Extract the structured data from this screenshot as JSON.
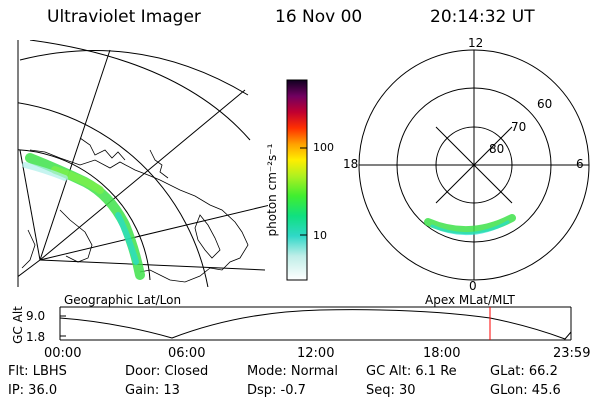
{
  "header": {
    "title": "Ultraviolet Imager",
    "date": "16 Nov 00",
    "time": "20:14:32 UT"
  },
  "colorbar": {
    "unit_label": "photon cm⁻²s⁻¹",
    "ticks": [
      "100",
      "10"
    ],
    "scale": "log"
  },
  "polar_plot": {
    "mlt_labels": {
      "top": "12",
      "left": "18",
      "right": "6",
      "bottom": "0"
    },
    "lat_labels": [
      "60",
      "70",
      "80"
    ]
  },
  "altitude_panel": {
    "left_caption": "Geographic Lat/Lon",
    "right_caption": "Apex MLat/MLT",
    "axis_label": "GC Alt",
    "y_ticks": [
      "9.0",
      "1.8"
    ],
    "x_ticks": [
      "00:00",
      "06:00",
      "12:00",
      "18:00",
      "23:59"
    ],
    "current_time_marker": "20:14:32",
    "marker_color": "#ff0000"
  },
  "info": {
    "row1": {
      "flt": "Flt: LBHS",
      "door": "Door: Closed",
      "mode": "Mode: Normal",
      "gcalt": "GC Alt: 6.1 Re",
      "glat": "GLat:  66.2"
    },
    "row2": {
      "ip": "IP: 36.0",
      "gain": "Gain: 13",
      "dsp": "Dsp:   -0.7",
      "seq": "Seq: 30",
      "glon": "GLon:  45.6"
    }
  },
  "colors": {
    "line": "#000000",
    "aurora_green": "#44dd44",
    "aurora_cyan": "#22dddd"
  }
}
